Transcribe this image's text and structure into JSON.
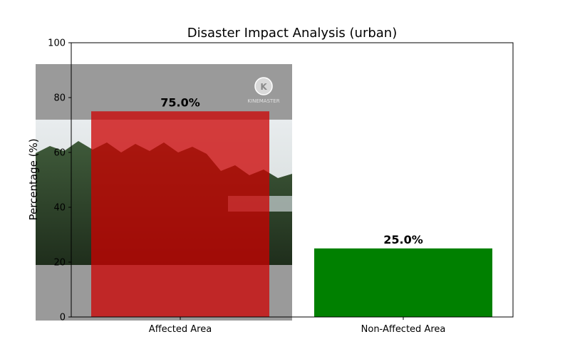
{
  "chart_data": {
    "type": "bar",
    "title": "Disaster Impact Analysis (urban)",
    "xlabel": "",
    "ylabel": "Percentage (%)",
    "ylim": [
      0,
      100
    ],
    "yticks": [
      0,
      20,
      40,
      60,
      80,
      100
    ],
    "categories": [
      "Affected Area",
      "Non-Affected Area"
    ],
    "values": [
      75.0,
      25.0
    ],
    "value_labels": [
      "75.0%",
      "25.0%"
    ],
    "colors": [
      "#cc0000",
      "#008000"
    ],
    "grid": false,
    "legend": "none"
  },
  "overlay": {
    "watermark_text": "KINEMASTER"
  }
}
